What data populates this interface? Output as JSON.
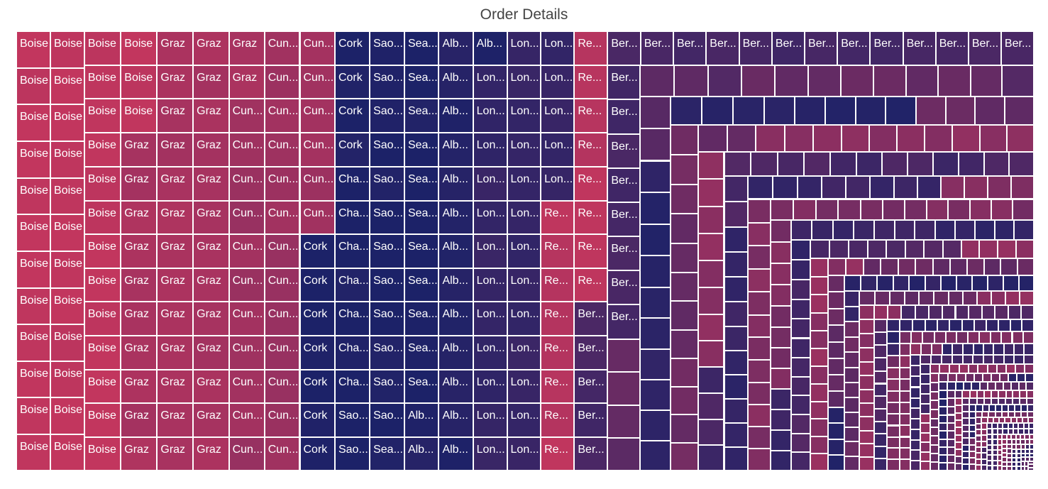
{
  "chart_data": {
    "type": "treemap",
    "title": "Order Details",
    "color_range": [
      "#c2365e",
      "#1c2268"
    ],
    "groups": [
      {
        "label": "Boise",
        "count": 40,
        "shade": 0.0
      },
      {
        "label": "Graz",
        "count": 38,
        "shade": 0.15
      },
      {
        "label": "Cunewalde",
        "count": 30,
        "shade": 0.22
      },
      {
        "label": "Cork",
        "count": 11,
        "shade": 1.0
      },
      {
        "label": "Charleroi",
        "count": 7,
        "shade": 1.0
      },
      {
        "label": "Sao Paulo",
        "count": 14,
        "shade": 1.0
      },
      {
        "label": "Seattle",
        "count": 12,
        "shade": 1.0
      },
      {
        "label": "Albuquerque",
        "count": 16,
        "shade": 0.95
      },
      {
        "label": "London",
        "count": 30,
        "shade": 0.85
      },
      {
        "label": "Resende",
        "count": 16,
        "shade": 0.05
      },
      {
        "label": "Bergamo",
        "count": 26,
        "shade": 0.75
      }
    ]
  }
}
